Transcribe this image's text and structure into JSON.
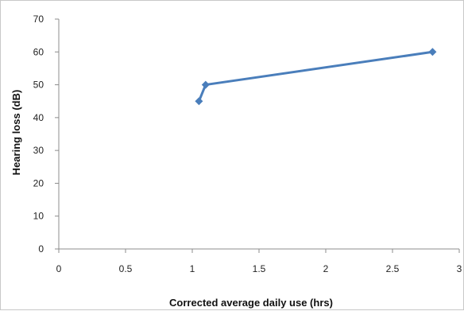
{
  "chart_data": {
    "type": "line",
    "title": "",
    "xlabel": "Corrected average daily use (hrs)",
    "ylabel": "Hearing loss (dB)",
    "xlim": [
      0,
      3
    ],
    "ylim": [
      0,
      70
    ],
    "x_ticks": [
      0,
      0.5,
      1,
      1.5,
      2,
      2.5,
      3
    ],
    "x_tick_labels": [
      "0",
      "0.5",
      "1",
      "1.5",
      "2",
      "2.5",
      "3"
    ],
    "y_ticks": [
      0,
      10,
      20,
      30,
      40,
      50,
      60,
      70
    ],
    "y_tick_labels": [
      "0",
      "10",
      "20",
      "30",
      "40",
      "50",
      "60",
      "70"
    ],
    "grid": false,
    "legend": "none",
    "series": [
      {
        "color": "#4a7ebb",
        "marker": "diamond",
        "x": [
          1.05,
          1.1,
          2.8
        ],
        "y": [
          45,
          50,
          60
        ]
      }
    ]
  }
}
